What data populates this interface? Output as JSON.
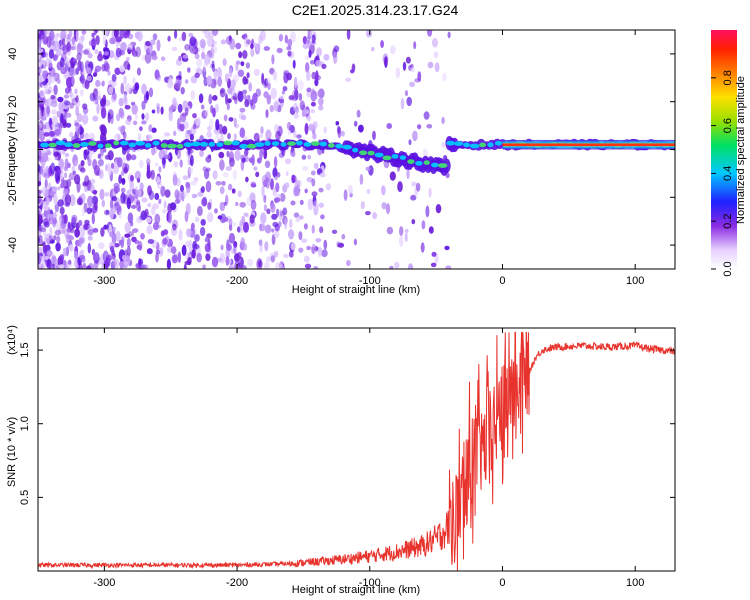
{
  "title": "C2E1.2025.314.23.17.G24",
  "chart_data": [
    {
      "type": "heatmap",
      "name": "spectrogram",
      "xlabel": "Height of straight line (km)",
      "ylabel": "Frequency (Hz)",
      "xlim": [
        -350,
        130
      ],
      "ylim": [
        -50,
        50
      ],
      "xticks": [
        -300,
        -200,
        -100,
        0,
        100
      ],
      "yticks": [
        -40,
        -20,
        0,
        20,
        40
      ],
      "colorbar": {
        "label": "Normalized spectral amplitude",
        "range": [
          0.0,
          1.0
        ],
        "ticks": [
          0.0,
          0.2,
          0.4,
          0.6,
          0.8
        ]
      },
      "features": [
        {
          "description": "signal band",
          "x_range": [
            -350,
            130
          ],
          "center_freq_hz": 2
        },
        {
          "description": "scattered noise",
          "x_range": [
            -350,
            -150
          ],
          "freq_range": [
            -50,
            50
          ]
        }
      ]
    },
    {
      "type": "line",
      "name": "snr",
      "xlabel": "Height of straight line (km)",
      "ylabel": "SNR (10 * v/v)",
      "y_multiplier": "(x10⁴)",
      "xlim": [
        -350,
        130
      ],
      "ylim": [
        0,
        1.65
      ],
      "xticks": [
        -300,
        -200,
        -100,
        0,
        100
      ],
      "yticks": [
        0.5,
        1.0,
        1.5
      ],
      "ytick_labels": [
        "0.5",
        "1.0",
        "1.5"
      ],
      "color": "#e8322c",
      "x": [
        -350,
        -300,
        -250,
        -200,
        -160,
        -130,
        -100,
        -80,
        -60,
        -50,
        -40,
        -35,
        -30,
        -25,
        -20,
        -15,
        -10,
        -5,
        0,
        5,
        10,
        15,
        20,
        25,
        30,
        40,
        60,
        80,
        100,
        110,
        130
      ],
      "y": [
        0.04,
        0.04,
        0.04,
        0.04,
        0.05,
        0.07,
        0.1,
        0.13,
        0.17,
        0.22,
        0.3,
        0.38,
        0.5,
        0.7,
        0.8,
        0.82,
        0.9,
        1.0,
        1.1,
        1.2,
        1.25,
        1.3,
        1.35,
        1.45,
        1.5,
        1.52,
        1.53,
        1.52,
        1.53,
        1.51,
        1.49
      ]
    }
  ]
}
